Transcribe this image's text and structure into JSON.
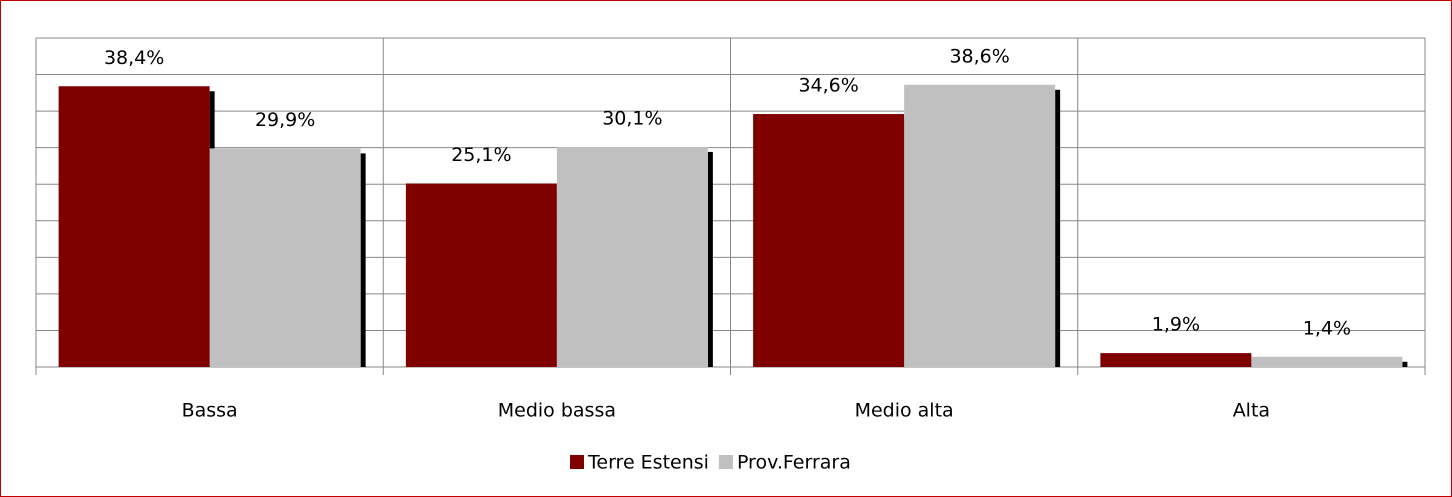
{
  "chart_data": {
    "type": "bar",
    "categories": [
      "Bassa",
      "Medio bassa",
      "Medio alta",
      "Alta"
    ],
    "series": [
      {
        "name": "Terre Estensi",
        "color": "#800000",
        "values": [
          38.4,
          25.1,
          34.6,
          1.9
        ],
        "value_labels": [
          "38,4%",
          "25,1%",
          "34,6%",
          "1,9%"
        ]
      },
      {
        "name": "Prov.Ferrara",
        "color": "#c0c0c0",
        "values": [
          29.9,
          30.1,
          38.6,
          1.4
        ],
        "value_labels": [
          "29,9%",
          "30,1%",
          "38,6%",
          "1,4%"
        ]
      }
    ],
    "ylim": [
      0,
      45
    ],
    "yticks": [
      0,
      5,
      10,
      15,
      20,
      25,
      30,
      35,
      40,
      45
    ],
    "grid": true
  }
}
